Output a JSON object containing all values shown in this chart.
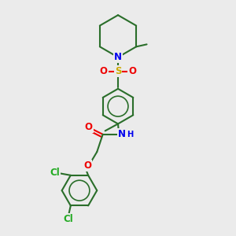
{
  "background_color": "#ebebeb",
  "bond_color": "#2a6e2a",
  "bond_width": 1.5,
  "atom_colors": {
    "N": "#0000ee",
    "O": "#ee0000",
    "S": "#ccaa00",
    "Cl": "#22aa22",
    "C": "#2a6e2a"
  },
  "font_size": 8.5,
  "fig_size": [
    3.0,
    3.0
  ],
  "dpi": 100
}
